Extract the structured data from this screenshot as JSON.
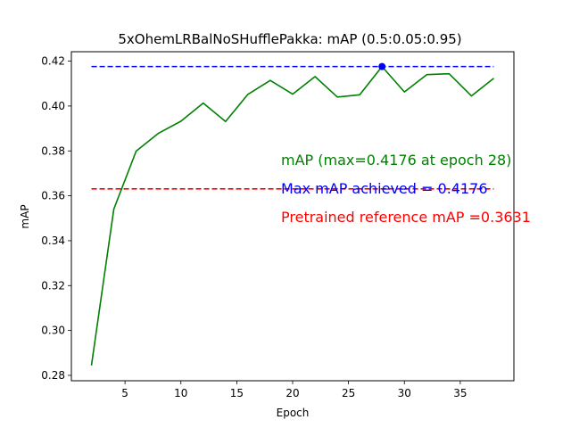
{
  "chart_data": {
    "type": "line",
    "title": "5xOhemLRBalNoSHufflePakka:  mAP (0.5:0.05:0.95)",
    "xlabel": "Epoch",
    "ylabel": "mAP",
    "xlim": [
      0.2,
      39.8
    ],
    "ylim": [
      0.2776,
      0.4242
    ],
    "x_ticks": [
      5,
      10,
      15,
      20,
      25,
      30,
      35
    ],
    "y_ticks": [
      0.28,
      0.3,
      0.32,
      0.34,
      0.36,
      0.38,
      0.4,
      0.42
    ],
    "x_tick_labels": [
      "5",
      "10",
      "15",
      "20",
      "25",
      "30",
      "35"
    ],
    "y_tick_labels": [
      "0.28",
      "0.30",
      "0.32",
      "0.34",
      "0.36",
      "0.38",
      "0.40",
      "0.42"
    ],
    "grid": false,
    "series": [
      {
        "color": "#008000",
        "x": [
          2,
          4,
          6,
          8,
          10,
          12,
          14,
          16,
          18,
          20,
          22,
          24,
          26,
          28,
          30,
          32,
          34,
          36,
          38
        ],
        "y": [
          0.2844,
          0.3541,
          0.3799,
          0.3879,
          0.3932,
          0.4013,
          0.3931,
          0.4052,
          0.4114,
          0.4053,
          0.4131,
          0.404,
          0.405,
          0.4176,
          0.4063,
          0.414,
          0.4144,
          0.4045,
          0.4124
        ]
      }
    ],
    "reference_lines": [
      {
        "y": 0.4176,
        "x_range": [
          2,
          38
        ],
        "color": "#0000ff",
        "style": "dashed"
      },
      {
        "y": 0.3631,
        "x_range": [
          2,
          38
        ],
        "color": "#ff0000",
        "style": "dashed"
      }
    ],
    "max_marker": {
      "x": 28,
      "y": 0.4176,
      "color": "#0000ff"
    },
    "annotations": [
      {
        "text": "mAP (max=0.4176 at epoch 28)",
        "color": "#008000"
      },
      {
        "text": "Max mAP achieved = 0.4176",
        "color": "#0000ff"
      },
      {
        "text": "Pretrained reference mAP =0.3631",
        "color": "#ff0000"
      }
    ]
  }
}
